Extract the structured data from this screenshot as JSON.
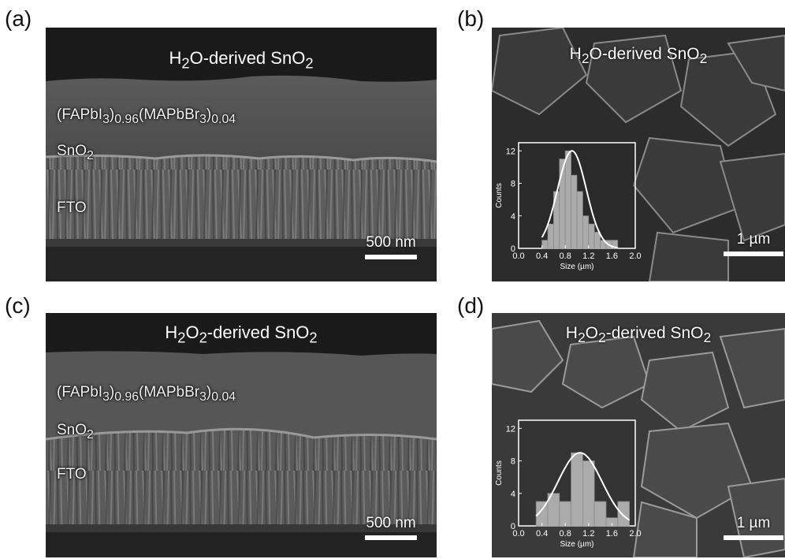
{
  "panels": [
    {
      "letter": "(a)",
      "title_parts": [
        "H",
        "2",
        "O-derived SnO",
        "2"
      ],
      "layers": [
        [
          "(FAPbI",
          "3",
          ")",
          "0.96",
          "(MAPbBr",
          "3",
          ")",
          "0.04"
        ],
        [
          "SnO",
          "2"
        ],
        [
          "FTO"
        ]
      ],
      "scale_bar": "500 nm"
    },
    {
      "letter": "(b)",
      "title_parts": [
        "H",
        "2",
        "O-derived SnO",
        "2"
      ],
      "scale_bar": "1 µm",
      "inset": {
        "ylabel": "Counts",
        "xlabel": "Size (µm)",
        "yticks": [
          "0",
          "4",
          "8",
          "12"
        ],
        "xticks": [
          "0.0",
          "0.4",
          "0.8",
          "1.2",
          "1.6",
          "2.0"
        ]
      }
    },
    {
      "letter": "(c)",
      "title_parts": [
        "H",
        "2",
        "O",
        "2",
        "-derived SnO",
        "2"
      ],
      "layers": [
        [
          "(FAPbI",
          "3",
          ")",
          "0.96",
          "(MAPbBr",
          "3",
          ")",
          "0.04"
        ],
        [
          "SnO",
          "2"
        ],
        [
          "FTO"
        ]
      ],
      "scale_bar": "500 nm"
    },
    {
      "letter": "(d)",
      "title_parts": [
        "H",
        "2",
        "O",
        "2",
        "-derived SnO",
        "2"
      ],
      "scale_bar": "1 µm",
      "inset": {
        "ylabel": "Counts",
        "xlabel": "Size (µm)",
        "yticks": [
          "0",
          "4",
          "8",
          "12"
        ],
        "xticks": [
          "0.0",
          "0.4",
          "0.8",
          "1.2",
          "1.6",
          "2.0"
        ]
      }
    }
  ],
  "chart_data": [
    {
      "type": "bar",
      "bin_width": 0.1,
      "x": [
        0.45,
        0.55,
        0.65,
        0.75,
        0.85,
        0.95,
        1.05,
        1.15,
        1.25,
        1.35,
        1.45,
        1.55,
        1.65
      ],
      "values": [
        1,
        3,
        7,
        11,
        12,
        9,
        7,
        4,
        3,
        2,
        1,
        1,
        1
      ],
      "xlabel": "Size (µm)",
      "ylabel": "Counts",
      "xlim": [
        0,
        2.0
      ],
      "ylim": [
        0,
        13
      ],
      "fit_curve": "gaussian"
    },
    {
      "type": "bar",
      "bin_width": 0.2,
      "x": [
        0.4,
        0.6,
        0.8,
        1.0,
        1.2,
        1.4,
        1.6,
        1.8
      ],
      "values": [
        3,
        4,
        3,
        9,
        8,
        3,
        1,
        3
      ],
      "xlabel": "Size (µm)",
      "ylabel": "Counts",
      "xlim": [
        0,
        2.0
      ],
      "ylim": [
        0,
        13
      ],
      "fit_curve": "gaussian"
    }
  ]
}
